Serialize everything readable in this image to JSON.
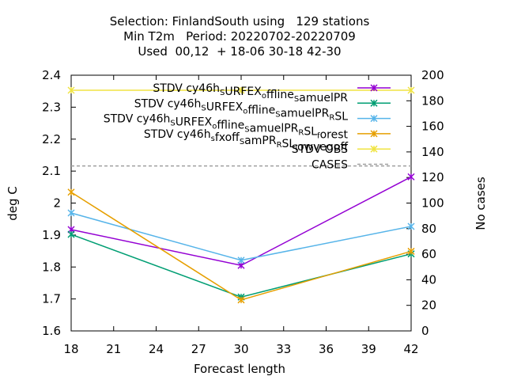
{
  "chart_data": {
    "type": "line",
    "title_lines": [
      "Selection: FinlandSouth using   129 stations",
      "Min T2m   Period: 20220702-20220709",
      "Used  00,12  + 18-06 30-18 42-30"
    ],
    "xlabel": "Forecast length",
    "ylabel": "deg C",
    "y2label": "No cases",
    "x": [
      18,
      30,
      42
    ],
    "xlim": [
      18,
      42
    ],
    "ylim": [
      1.6,
      2.4
    ],
    "y2lim": [
      0,
      200
    ],
    "xticks": [
      "18",
      "21",
      "24",
      "27",
      "30",
      "33",
      "36",
      "39",
      "42"
    ],
    "yticks": [
      "1.6",
      "1.7",
      "1.8",
      "1.9",
      "2",
      "2.1",
      "2.2",
      "2.3",
      "2.4"
    ],
    "y2ticks": [
      "0",
      "20",
      "40",
      "60",
      "80",
      "100",
      "120",
      "140",
      "160",
      "180",
      "200"
    ],
    "grid": false,
    "legend_position": "top-right",
    "series": [
      {
        "name": "STDV cy46h_S URFEX_offline_S amuelPR",
        "legend": {
          "a": "STDV cy46h",
          "a_sub": "S",
          "b": "URFEX",
          "b_sub": "o",
          "c": "ffline",
          "c_sub": "S",
          "d": "amuelPR",
          "d_sub": "",
          "e": ""
        },
        "color": "#9400d3",
        "values": [
          1.917,
          1.805,
          2.082
        ]
      },
      {
        "name": "STDV cy46h_S URFEX_offline_S amuelPR_R SL",
        "legend": {
          "a": "STDV cy46h",
          "a_sub": "S",
          "b": "URFEX",
          "b_sub": "o",
          "c": "ffline",
          "c_sub": "S",
          "d": "amuelPR",
          "d_sub": "R",
          "e": "SL"
        },
        "color": "#009e73",
        "values": [
          1.902,
          1.706,
          1.841
        ]
      },
      {
        "name": "STDV cy46h_S URFEX_offline_S amuelPR_R SL_f orest",
        "legend": {
          "a": "STDV cy46h",
          "a_sub": "S",
          "b": "URFEX",
          "b_sub": "o",
          "c": "ffline",
          "c_sub": "S",
          "d": "amuelPR",
          "d_sub": "R",
          "e": "SL",
          "e_sub": "f",
          "f": "orest"
        },
        "color": "#56b4e9",
        "values": [
          1.969,
          1.821,
          1.927
        ]
      },
      {
        "name": "STDV cy46h_s fxoff_S amPR_R SL_l owvegoff",
        "legend": {
          "a": "STDV cy46h",
          "a_sub": "s",
          "b": "fxoff",
          "b_sub": "S",
          "c": "amPR",
          "c_sub": "R",
          "d": "SL",
          "d_sub": "l",
          "e": "owvegoff"
        },
        "color": "#e69f00",
        "values": [
          2.034,
          1.697,
          1.849
        ]
      },
      {
        "name": "STDV OBS",
        "legend": {
          "a": "STDV OBS"
        },
        "color": "#f0e442",
        "values": [
          2.353,
          2.353,
          2.353
        ]
      },
      {
        "name": "CASES",
        "legend": {
          "a": "CASES"
        },
        "color": "#a0a0a0",
        "dashed": true,
        "axis": "y2",
        "values": [
          129,
          129,
          129
        ]
      }
    ]
  }
}
